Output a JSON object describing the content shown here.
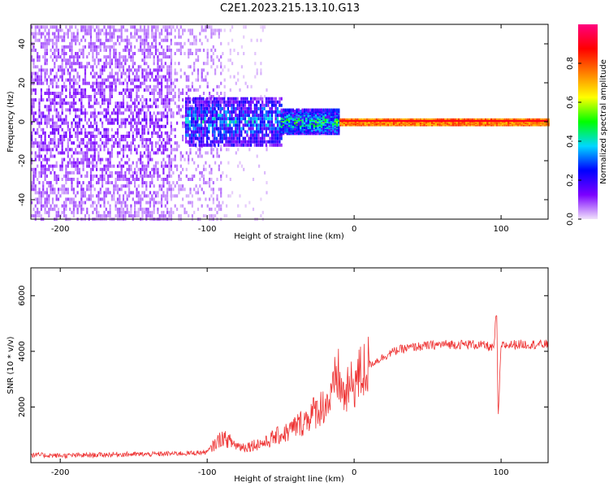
{
  "figure_title": "C2E1.2023.215.13.10.G13",
  "chart_data": [
    {
      "type": "heatmap",
      "title": "",
      "xlabel": "Height of straight line (km)",
      "ylabel": "Frequency (Hz)",
      "xlim": [
        -220,
        132
      ],
      "ylim": [
        -50,
        50
      ],
      "xticks": [
        -200,
        -100,
        0,
        100
      ],
      "yticks": [
        -40,
        -20,
        0,
        20,
        40
      ],
      "colorbar": {
        "label": "Normalized spectral amplitude",
        "range": [
          0,
          1
        ],
        "ticks": [
          0.0,
          0.2,
          0.4,
          0.6,
          0.8
        ],
        "colors": [
          "#f1e2fb",
          "#7b00ff",
          "#0000ff",
          "#00d7ff",
          "#00ff00",
          "#ffff00",
          "#ff7f00",
          "#ff0000",
          "#ff007f"
        ]
      },
      "regions": [
        {
          "x": [
            -220,
            -125
          ],
          "freq_spread": 50,
          "amplitude": 0.12,
          "density": 0.55
        },
        {
          "x": [
            -125,
            -90
          ],
          "freq_spread": 50,
          "amplitude": 0.08,
          "density": 0.3
        },
        {
          "x": [
            -90,
            -60
          ],
          "freq_spread": 50,
          "amplitude": 0.03,
          "density": 0.08
        },
        {
          "x": [
            -115,
            -50
          ],
          "freq_spread": 12,
          "amplitude": 0.35,
          "density": 0.85
        },
        {
          "x": [
            -50,
            -10
          ],
          "freq_spread": 6,
          "amplitude": 0.45,
          "density": 0.9
        },
        {
          "x": [
            -10,
            132
          ],
          "freq_spread": 1.5,
          "amplitude": 0.8,
          "density": 1.0
        }
      ]
    },
    {
      "type": "line",
      "title": "",
      "xlabel": "Height of straight line (km)",
      "ylabel": "SNR (10 * v/v)",
      "xlim": [
        -220,
        132
      ],
      "ylim": [
        0,
        7000
      ],
      "xticks": [
        -200,
        -100,
        0,
        100
      ],
      "yticks": [
        2000,
        4000,
        6000
      ],
      "color": "#ee3333",
      "x": [
        -220,
        -200,
        -180,
        -160,
        -140,
        -120,
        -110,
        -100,
        -95,
        -90,
        -85,
        -80,
        -75,
        -70,
        -65,
        -60,
        -55,
        -50,
        -45,
        -40,
        -35,
        -30,
        -25,
        -20,
        -15,
        -12,
        -10,
        -8,
        -5,
        0,
        5,
        10,
        15,
        20,
        25,
        30,
        40,
        50,
        60,
        70,
        80,
        90,
        95,
        97,
        98,
        100,
        110,
        120,
        132
      ],
      "y": [
        280,
        250,
        270,
        300,
        300,
        330,
        340,
        380,
        650,
        900,
        780,
        620,
        560,
        620,
        680,
        720,
        900,
        1000,
        1100,
        1300,
        1450,
        1700,
        1900,
        2100,
        2300,
        3200,
        3000,
        2400,
        2500,
        2900,
        3200,
        3500,
        3650,
        3800,
        3950,
        4050,
        4150,
        4200,
        4250,
        4250,
        4250,
        4200,
        4100,
        5500,
        1500,
        4200,
        4250,
        4250,
        4250
      ]
    }
  ]
}
